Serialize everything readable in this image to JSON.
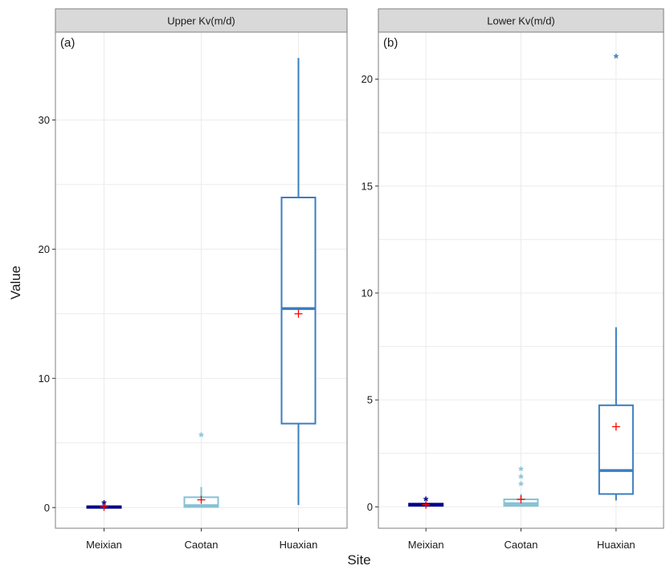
{
  "chart_data": {
    "type": "boxplot",
    "xlabel": "Site",
    "ylabel": "Value",
    "categories": [
      "Meixian",
      "Caotan",
      "Huaxian"
    ],
    "colors": {
      "Meixian": "#00008b",
      "Caotan": "#87c1d6",
      "Huaxian": "#3a7ebf",
      "mean": "#ff0000"
    },
    "grid": true,
    "panels": [
      {
        "strip": "Upper Kv(m/d)",
        "tag": "(a)",
        "ylim": [
          -1.6,
          36.8
        ],
        "yticks": [
          0,
          10,
          20,
          30
        ],
        "ytick_labels": [
          "0",
          "10",
          "20",
          "30"
        ],
        "boxes": [
          {
            "category": "Meixian",
            "min": 0.0,
            "q1": 0.0,
            "median": 0.05,
            "q3": 0.1,
            "max": 0.2,
            "mean": 0.05,
            "outliers": [
              0.25
            ]
          },
          {
            "category": "Caotan",
            "min": 0.0,
            "q1": 0.05,
            "median": 0.15,
            "q3": 0.8,
            "max": 1.6,
            "mean": 0.6,
            "outliers": [
              5.5
            ]
          },
          {
            "category": "Huaxian",
            "min": 0.2,
            "q1": 6.5,
            "median": 15.4,
            "q3": 24.0,
            "max": 34.8,
            "mean": 15.0,
            "outliers": []
          }
        ]
      },
      {
        "strip": "Lower Kv(m/d)",
        "tag": "(b)",
        "ylim": [
          -1.0,
          22.2
        ],
        "yticks": [
          0,
          5,
          10,
          15,
          20
        ],
        "ytick_labels": [
          "0",
          "5",
          "10",
          "15",
          "20"
        ],
        "boxes": [
          {
            "category": "Meixian",
            "min": 0.05,
            "q1": 0.05,
            "median": 0.1,
            "q3": 0.15,
            "max": 0.2,
            "mean": 0.1,
            "outliers": [
              0.3
            ]
          },
          {
            "category": "Caotan",
            "min": 0.0,
            "q1": 0.05,
            "median": 0.15,
            "q3": 0.35,
            "max": 0.6,
            "mean": 0.35,
            "outliers": [
              1.0,
              1.35,
              1.7
            ]
          },
          {
            "category": "Huaxian",
            "min": 0.3,
            "q1": 0.6,
            "median": 1.7,
            "q3": 4.75,
            "max": 8.4,
            "mean": 3.75,
            "outliers": [
              21.0
            ]
          }
        ]
      }
    ]
  }
}
